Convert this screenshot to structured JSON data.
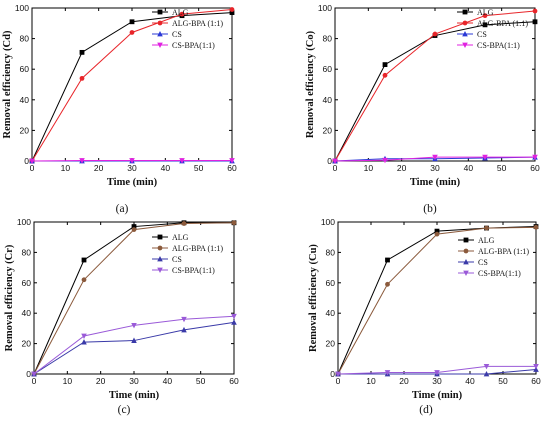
{
  "chart_data": [
    {
      "type": "line",
      "panel_label": "(a)",
      "x": [
        0,
        15,
        30,
        45,
        60
      ],
      "xlabel": "Time (min)",
      "ylabel": "Removal efficiency (Cd)",
      "xlim": [
        0,
        60
      ],
      "ylim": [
        0,
        100
      ],
      "xticks": [
        0,
        10,
        20,
        30,
        40,
        50,
        60
      ],
      "yticks": [
        0,
        20,
        40,
        60,
        80,
        100
      ],
      "legend_position": "top-right",
      "series": [
        {
          "name": "ALG",
          "color": "#000000",
          "marker": "square",
          "values": [
            0,
            71,
            91,
            95,
            97
          ]
        },
        {
          "name": "ALG-BPA (1:1)",
          "color": "#e8252a",
          "marker": "circle",
          "values": [
            0,
            54,
            84,
            96,
            99
          ]
        },
        {
          "name": "CS",
          "color": "#2b39d6",
          "marker": "triangle-up",
          "values": [
            0,
            0,
            0,
            0,
            0
          ]
        },
        {
          "name": "CS-BPA(1:1)",
          "color": "#e022e0",
          "marker": "triangle-down",
          "values": [
            0,
            0.3,
            0.3,
            0.3,
            0.3
          ]
        }
      ]
    },
    {
      "type": "line",
      "panel_label": "(b)",
      "x": [
        0,
        15,
        30,
        45,
        60
      ],
      "xlabel": "Time (min)",
      "ylabel": "Removal efficiency (Co)",
      "xlim": [
        0,
        60
      ],
      "ylim": [
        0,
        100
      ],
      "xticks": [
        0,
        10,
        20,
        30,
        40,
        50,
        60
      ],
      "yticks": [
        0,
        20,
        40,
        60,
        80,
        100
      ],
      "legend_position": "top-right",
      "series": [
        {
          "name": "ALG",
          "color": "#000000",
          "marker": "square",
          "values": [
            0,
            63,
            82,
            89,
            91
          ]
        },
        {
          "name": "ALG-BPA (1:1)",
          "color": "#e8252a",
          "marker": "circle",
          "values": [
            0,
            56,
            83,
            95,
            98
          ]
        },
        {
          "name": "CS",
          "color": "#2b39d6",
          "marker": "triangle-up",
          "values": [
            0,
            1.5,
            1.5,
            2,
            2.5
          ]
        },
        {
          "name": "CS-BPA(1:1)",
          "color": "#e022e0",
          "marker": "triangle-down",
          "values": [
            0,
            0.5,
            2.5,
            2.5,
            2.5
          ]
        }
      ]
    },
    {
      "type": "line",
      "panel_label": "(c)",
      "x": [
        0,
        15,
        30,
        45,
        60
      ],
      "xlabel": "Time (min)",
      "ylabel": "Removal efficiency (Cr)",
      "xlim": [
        0,
        60
      ],
      "ylim": [
        0,
        100
      ],
      "xticks": [
        0,
        10,
        20,
        30,
        40,
        50,
        60
      ],
      "yticks": [
        0,
        20,
        40,
        60,
        80,
        100
      ],
      "legend_position": "middle-right",
      "series": [
        {
          "name": "ALG",
          "color": "#000000",
          "marker": "square",
          "values": [
            0,
            75,
            97,
            99.5,
            99.5
          ]
        },
        {
          "name": "ALG-BPA (1:1)",
          "color": "#8b5a3c",
          "marker": "circle",
          "values": [
            0,
            62,
            95,
            99,
            99.5
          ]
        },
        {
          "name": "CS",
          "color": "#3a3aa8",
          "marker": "triangle-up",
          "values": [
            0,
            21,
            22,
            29,
            34
          ]
        },
        {
          "name": "CS-BPA(1:1)",
          "color": "#9a5ad8",
          "marker": "triangle-down",
          "values": [
            0,
            25,
            32,
            36,
            38
          ]
        }
      ]
    },
    {
      "type": "line",
      "panel_label": "(d)",
      "x": [
        0,
        15,
        30,
        45,
        60
      ],
      "xlabel": "Time (min)",
      "ylabel": "Removal efficiency (Cu)",
      "xlim": [
        0,
        60
      ],
      "ylim": [
        0,
        100
      ],
      "xticks": [
        0,
        10,
        20,
        30,
        40,
        50,
        60
      ],
      "yticks": [
        0,
        20,
        40,
        60,
        80,
        100
      ],
      "legend_position": "middle-right",
      "series": [
        {
          "name": "ALG",
          "color": "#000000",
          "marker": "square",
          "values": [
            0,
            75,
            94,
            96,
            97
          ]
        },
        {
          "name": "ALG-BPA (1:1)",
          "color": "#8b5a3c",
          "marker": "circle",
          "values": [
            0,
            59,
            92,
            96,
            96.5
          ]
        },
        {
          "name": "CS",
          "color": "#3a3aa8",
          "marker": "triangle-up",
          "values": [
            0,
            0,
            0,
            0,
            3
          ]
        },
        {
          "name": "CS-BPA(1:1)",
          "color": "#9a5ad8",
          "marker": "triangle-down",
          "values": [
            0,
            1,
            1,
            5,
            5
          ]
        }
      ]
    }
  ]
}
